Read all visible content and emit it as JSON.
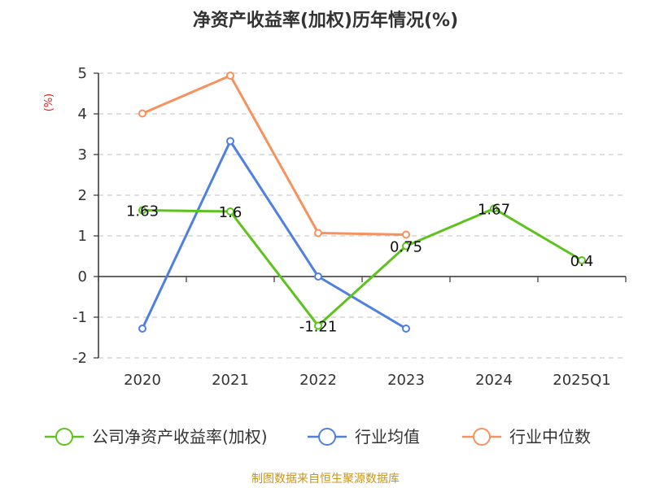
{
  "chart_data": {
    "type": "line",
    "title": "净资产收益率(加权)历年情况(%)",
    "ylabel": "(%)",
    "xlabel": "",
    "categories": [
      "2020",
      "2021",
      "2022",
      "2023",
      "2024",
      "2025Q1"
    ],
    "ylim": [
      -2,
      5
    ],
    "yticks": [
      -2,
      -1,
      0,
      1,
      2,
      3,
      4,
      5
    ],
    "grid": true,
    "legend_position": "bottom",
    "series": [
      {
        "name": "公司净资产收益率(加权)",
        "color": "#5dc21e",
        "values": [
          1.63,
          1.6,
          -1.21,
          0.75,
          1.67,
          0.4
        ],
        "labels": [
          "1.63",
          "1.6",
          "-1.21",
          "0.75",
          "1.67",
          "0.4"
        ]
      },
      {
        "name": "行业均值",
        "color": "#4f7fdf",
        "values": [
          -1.28,
          3.33,
          0.0,
          -1.28,
          null,
          null
        ]
      },
      {
        "name": "行业中位数",
        "color": "#f5925e",
        "values": [
          4.01,
          4.94,
          1.07,
          1.03,
          null,
          null
        ]
      }
    ]
  },
  "source": "制图数据来自恒生聚源数据库"
}
